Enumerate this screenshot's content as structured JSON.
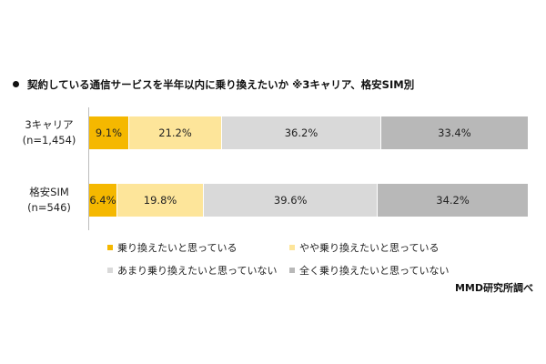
{
  "title": "契約している通信サービスを半年以内に乗り換えたいか ※3キャリア、格安SIM別",
  "source": "MMD研究所調べ",
  "colors": {
    "series": [
      "#f5b800",
      "#fde59a",
      "#d9d9d9",
      "#b8b8b8"
    ]
  },
  "chart_data": {
    "type": "bar",
    "orientation": "horizontal",
    "stacked": "100%",
    "title": "契約している通信サービスを半年以内に乗り換えたいか ※3キャリア、格安SIM別",
    "categories": [
      {
        "name": "3キャリア",
        "sub": "(n=1,454)"
      },
      {
        "name": "格安SIM",
        "sub": "(n=546)"
      }
    ],
    "series": [
      {
        "name": "乗り換えたいと思っている",
        "values": [
          9.1,
          6.4
        ],
        "labels": [
          "9.1%",
          "6.4%"
        ]
      },
      {
        "name": "やや乗り換えたいと思っている",
        "values": [
          21.2,
          19.8
        ],
        "labels": [
          "21.2%",
          "19.8%"
        ]
      },
      {
        "name": "あまり乗り換えたいと思っていない",
        "values": [
          36.2,
          39.6
        ],
        "labels": [
          "36.2%",
          "39.6%"
        ]
      },
      {
        "name": "全く乗り換えたいと思っていない",
        "values": [
          33.4,
          34.2
        ],
        "labels": [
          "33.4%",
          "34.2%"
        ]
      }
    ],
    "legend": "bottom",
    "grid": false
  }
}
